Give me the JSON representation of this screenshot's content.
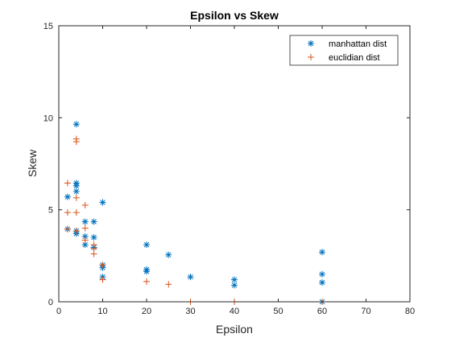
{
  "chart_data": {
    "type": "scatter",
    "title": "Epsilon vs Skew",
    "xlabel": "Epsilon",
    "ylabel": "Skew",
    "xlim": [
      0,
      80
    ],
    "ylim": [
      0,
      15
    ],
    "xticks": [
      0,
      10,
      20,
      30,
      40,
      50,
      60,
      70,
      80
    ],
    "yticks": [
      0,
      5,
      10,
      15
    ],
    "grid": false,
    "legend_position": "top-right",
    "series": [
      {
        "name": "manhattan dist",
        "marker": "asterisk",
        "color": "#0072BD",
        "points": [
          [
            2,
            5.7
          ],
          [
            2,
            3.95
          ],
          [
            4,
            9.65
          ],
          [
            4,
            6.45
          ],
          [
            4,
            6.3
          ],
          [
            4,
            6.0
          ],
          [
            4,
            3.85
          ],
          [
            4,
            3.7
          ],
          [
            6,
            4.35
          ],
          [
            6,
            3.55
          ],
          [
            6,
            3.1
          ],
          [
            8,
            4.35
          ],
          [
            8,
            3.5
          ],
          [
            8,
            2.95
          ],
          [
            10,
            5.4
          ],
          [
            10,
            2.0
          ],
          [
            10,
            1.85
          ],
          [
            10,
            1.35
          ],
          [
            20,
            3.1
          ],
          [
            20,
            1.75
          ],
          [
            20,
            1.65
          ],
          [
            25,
            2.55
          ],
          [
            30,
            1.35
          ],
          [
            40,
            1.2
          ],
          [
            40,
            0.9
          ],
          [
            60,
            2.7
          ],
          [
            60,
            1.5
          ],
          [
            60,
            1.05
          ],
          [
            60,
            0.0
          ]
        ]
      },
      {
        "name": "euclidian dist",
        "marker": "plus",
        "color": "#D95319",
        "points": [
          [
            2,
            6.45
          ],
          [
            2,
            4.85
          ],
          [
            2,
            3.95
          ],
          [
            4,
            8.85
          ],
          [
            4,
            8.7
          ],
          [
            4,
            5.65
          ],
          [
            4,
            4.85
          ],
          [
            4,
            3.85
          ],
          [
            6,
            5.25
          ],
          [
            6,
            4.0
          ],
          [
            6,
            3.35
          ],
          [
            8,
            3.1
          ],
          [
            8,
            2.9
          ],
          [
            8,
            2.6
          ],
          [
            10,
            2.0
          ],
          [
            10,
            1.2
          ],
          [
            20,
            1.1
          ],
          [
            25,
            0.95
          ],
          [
            30,
            0.0
          ],
          [
            40,
            0.0
          ],
          [
            60,
            0.0
          ]
        ]
      }
    ]
  }
}
